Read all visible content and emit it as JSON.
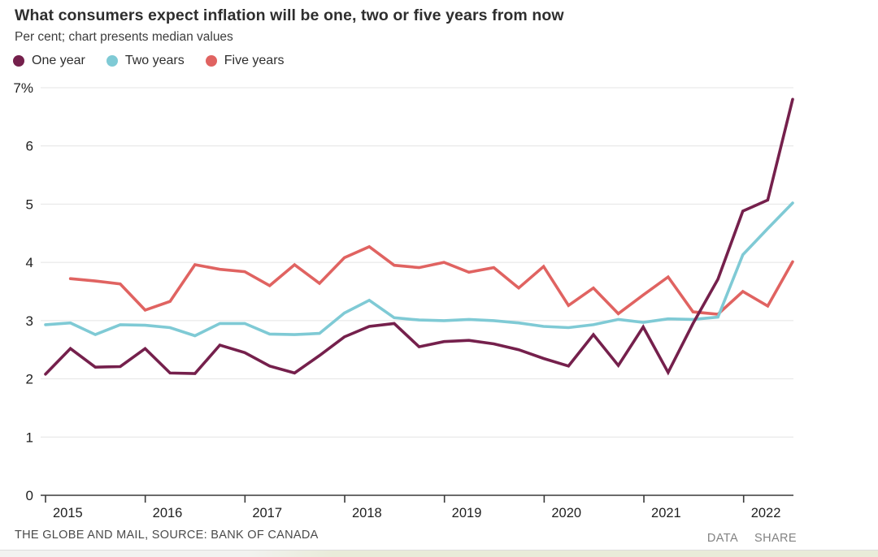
{
  "header": {
    "title": "What consumers expect inflation will be one, two or five years from now",
    "subtitle": "Per cent; chart presents median values"
  },
  "footer": {
    "source": "THE GLOBE AND MAIL, SOURCE: BANK OF CANADA",
    "actions": [
      "DATA",
      "SHARE"
    ]
  },
  "chart_data": {
    "type": "line",
    "unit": "per cent (median values)",
    "frequency": "quarterly",
    "x_start": "2014 Q4",
    "x_end": "2022 Q2",
    "year_ticks": [
      "2015",
      "2016",
      "2017",
      "2018",
      "2019",
      "2020",
      "2021",
      "2022"
    ],
    "y_tick_labels": [
      "7%",
      "6",
      "5",
      "4",
      "3",
      "2",
      "1",
      "0"
    ],
    "ylim": [
      0,
      7
    ],
    "grid": "horizontal",
    "legend_position": "top-left",
    "colors": {
      "one_year": "#75204C",
      "two_years": "#7FCAD5",
      "five_years": "#E06361"
    },
    "series": [
      {
        "name": "One year",
        "color": "#75204C",
        "start_index": 0,
        "values": [
          2.08,
          2.52,
          2.2,
          2.21,
          2.52,
          2.1,
          2.09,
          2.58,
          2.45,
          2.22,
          2.1,
          2.4,
          2.72,
          2.9,
          2.95,
          2.55,
          2.64,
          2.66,
          2.6,
          2.5,
          2.35,
          2.22,
          2.76,
          2.23,
          2.89,
          2.11,
          2.95,
          3.71,
          4.88,
          5.07,
          6.8
        ]
      },
      {
        "name": "Two years",
        "color": "#7FCAD5",
        "start_index": 0,
        "values": [
          2.93,
          2.96,
          2.76,
          2.93,
          2.92,
          2.88,
          2.74,
          2.95,
          2.95,
          2.77,
          2.76,
          2.78,
          3.13,
          3.35,
          3.05,
          3.01,
          3.0,
          3.02,
          3.0,
          2.96,
          2.9,
          2.88,
          2.93,
          3.02,
          2.97,
          3.03,
          3.02,
          3.06,
          4.13,
          4.58,
          5.02
        ]
      },
      {
        "name": "Five years",
        "color": "#E06361",
        "start_index": 1,
        "values": [
          3.72,
          3.68,
          3.63,
          3.18,
          3.33,
          3.96,
          3.88,
          3.84,
          3.6,
          3.96,
          3.64,
          4.08,
          4.27,
          3.95,
          3.91,
          4.0,
          3.83,
          3.91,
          3.56,
          3.93,
          3.26,
          3.56,
          3.12,
          3.44,
          3.75,
          3.15,
          3.11,
          3.5,
          3.25,
          4.01
        ]
      }
    ]
  }
}
